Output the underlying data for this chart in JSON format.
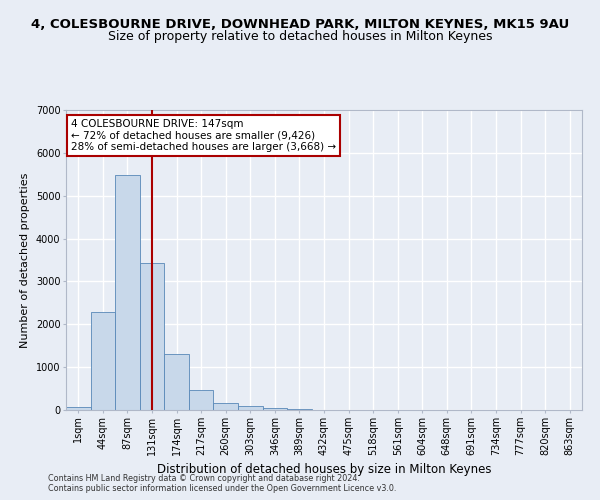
{
  "title": "4, COLESBOURNE DRIVE, DOWNHEAD PARK, MILTON KEYNES, MK15 9AU",
  "subtitle": "Size of property relative to detached houses in Milton Keynes",
  "xlabel": "Distribution of detached houses by size in Milton Keynes",
  "ylabel": "Number of detached properties",
  "footnote1": "Contains HM Land Registry data © Crown copyright and database right 2024.",
  "footnote2": "Contains public sector information licensed under the Open Government Licence v3.0.",
  "bar_color": "#c8d8ea",
  "bar_edge_color": "#5888b8",
  "vline_color": "#aa0000",
  "vline_x": 3,
  "annotation_line1": "4 COLESBOURNE DRIVE: 147sqm",
  "annotation_line2": "← 72% of detached houses are smaller (9,426)",
  "annotation_line3": "28% of semi-detached houses are larger (3,668) →",
  "annotation_box_facecolor": "#ffffff",
  "annotation_box_edgecolor": "#aa0000",
  "categories": [
    "1sqm",
    "44sqm",
    "87sqm",
    "131sqm",
    "174sqm",
    "217sqm",
    "260sqm",
    "303sqm",
    "346sqm",
    "389sqm",
    "432sqm",
    "475sqm",
    "518sqm",
    "561sqm",
    "604sqm",
    "648sqm",
    "691sqm",
    "734sqm",
    "777sqm",
    "820sqm",
    "863sqm"
  ],
  "bar_heights": [
    80,
    2280,
    5480,
    3430,
    1310,
    460,
    175,
    95,
    55,
    35,
    0,
    0,
    0,
    0,
    0,
    0,
    0,
    0,
    0,
    0,
    0
  ],
  "ylim": [
    0,
    7000
  ],
  "yticks": [
    0,
    1000,
    2000,
    3000,
    4000,
    5000,
    6000,
    7000
  ],
  "background_color": "#e8edf5",
  "grid_color": "#ffffff",
  "title_fontsize": 9.5,
  "subtitle_fontsize": 9,
  "ylabel_fontsize": 8,
  "xlabel_fontsize": 8.5,
  "tick_fontsize": 7,
  "annot_fontsize": 7.5,
  "footnote_fontsize": 5.8
}
